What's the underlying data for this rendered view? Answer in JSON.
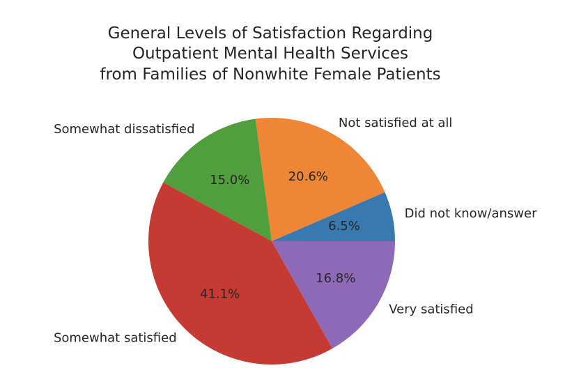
{
  "chart_data": {
    "type": "pie",
    "title": [
      "General Levels of Satisfaction Regarding",
      "Outpatient Mental Health Services",
      "from Families of Nonwhite Female Patients"
    ],
    "start_angle_deg": 0,
    "direction": "counterclockwise",
    "slices": [
      {
        "label": "Did not know/answer",
        "value": 6.5,
        "pct_text": "6.5%",
        "color": "#3a78b0"
      },
      {
        "label": "Not satisfied at all",
        "value": 20.6,
        "pct_text": "20.6%",
        "color": "#ef8636"
      },
      {
        "label": "Somewhat dissatisfied",
        "value": 15.0,
        "pct_text": "15.0%",
        "color": "#519e3e"
      },
      {
        "label": "Somewhat satisfied",
        "value": 41.1,
        "pct_text": "41.1%",
        "color": "#c53a32"
      },
      {
        "label": "Very satisfied",
        "value": 16.8,
        "pct_text": "16.8%",
        "color": "#8d69b8"
      }
    ]
  }
}
